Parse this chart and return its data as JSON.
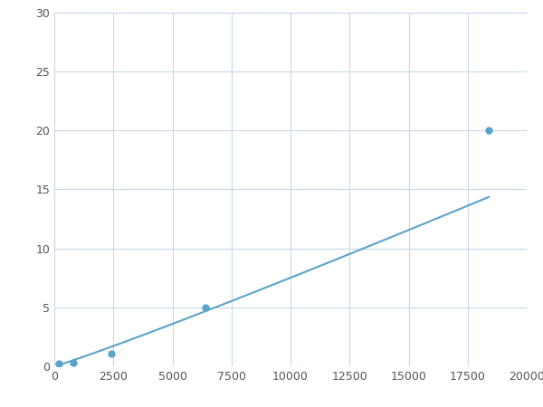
{
  "x": [
    200,
    800,
    2400,
    6400,
    18400
  ],
  "y": [
    0.2,
    0.3,
    1.1,
    5.0,
    20.0
  ],
  "line_color": "#5ba3c9",
  "marker_color": "#5ba3c9",
  "marker_size": 6,
  "linewidth": 1.5,
  "xlim": [
    0,
    20000
  ],
  "ylim": [
    0,
    30
  ],
  "xticks": [
    0,
    2500,
    5000,
    7500,
    10000,
    12500,
    15000,
    17500,
    20000
  ],
  "yticks": [
    0,
    5,
    10,
    15,
    20,
    25,
    30
  ],
  "grid_color": "#c8d8e8",
  "background_color": "#ffffff",
  "fig_background": "#ffffff"
}
